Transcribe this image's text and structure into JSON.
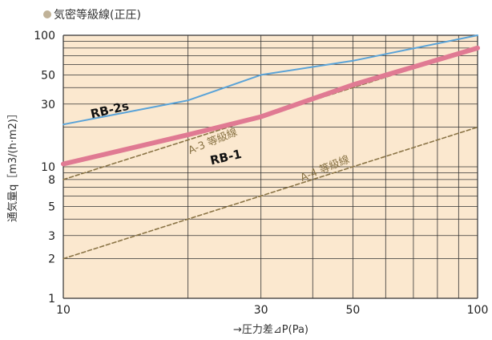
{
  "title": "気密等級線(正圧)",
  "colors": {
    "background": "#fbe8cf",
    "grid": "#333333",
    "rb2s": "#5aa3d8",
    "rb1": "#e07a93",
    "grade": "#8a7446",
    "title_dot": "#c0b298"
  },
  "chart_data": {
    "type": "line",
    "xscale": "log",
    "yscale": "log",
    "xlim": [
      10,
      100
    ],
    "ylim": [
      1,
      100
    ],
    "xlabel": "→圧力差⊿P(Pa)",
    "ylabel": "通気量q［m3/(h·m2)］",
    "xticks": [
      10,
      30,
      50,
      100
    ],
    "yticks": [
      1,
      2,
      3,
      5,
      8,
      10,
      30,
      50,
      100
    ],
    "grid": true,
    "series": [
      {
        "name": "RB-2s",
        "style": "solid",
        "x": [
          10,
          20,
          30,
          50,
          100
        ],
        "y": [
          21,
          32,
          50,
          64,
          100
        ]
      },
      {
        "name": "RB-1",
        "style": "solid-thick",
        "x": [
          10,
          20,
          30,
          50,
          100
        ],
        "y": [
          10.5,
          17.5,
          24,
          42,
          80
        ]
      },
      {
        "name": "A-3 等級線",
        "style": "dashed",
        "x": [
          10,
          100
        ],
        "y": [
          8,
          80
        ]
      },
      {
        "name": "A-4 等級線",
        "style": "dashed",
        "x": [
          10,
          100
        ],
        "y": [
          2,
          20
        ]
      }
    ]
  }
}
